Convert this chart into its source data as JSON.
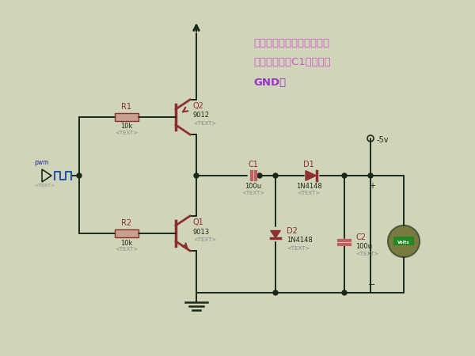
{
  "bg_color": "#d0d4b8",
  "line_color": "#1a2a1a",
  "component_color": "#8b3030",
  "res_fill": "#c8a090",
  "cap_fill": "#c06060",
  "annotation_color": "#cc55cc",
  "gnd_color": "#9933cc",
  "output_label": "-5v",
  "title_line1": "负电压产生电路，利用电容",
  "title_line2": "放电，把电容C1高电势接",
  "title_gnd": "GND。",
  "r1_label": "R1",
  "r1_val": "10k",
  "r1_text": "<TEXT>",
  "r2_label": "R2",
  "r2_val": "10k",
  "r2_text": "<TEXT>",
  "q2_label": "Q2",
  "q2_val": "9012",
  "q2_text": "<TEXT>",
  "q1_label": "Q1",
  "q1_val": "9013",
  "q1_text": "<TEXT>",
  "c1_label": "C1",
  "c1_val": "100u",
  "c1_text": "<TEXT>",
  "c2_label": "C2",
  "c2_val": "100u",
  "c2_text": "<TEXT>",
  "d1_label": "D1",
  "d1_val": "1N4148",
  "d1_text": "<TEXT>",
  "d2_label": "D2",
  "d2_val": "1N4148",
  "d2_text": "<TEXT>"
}
